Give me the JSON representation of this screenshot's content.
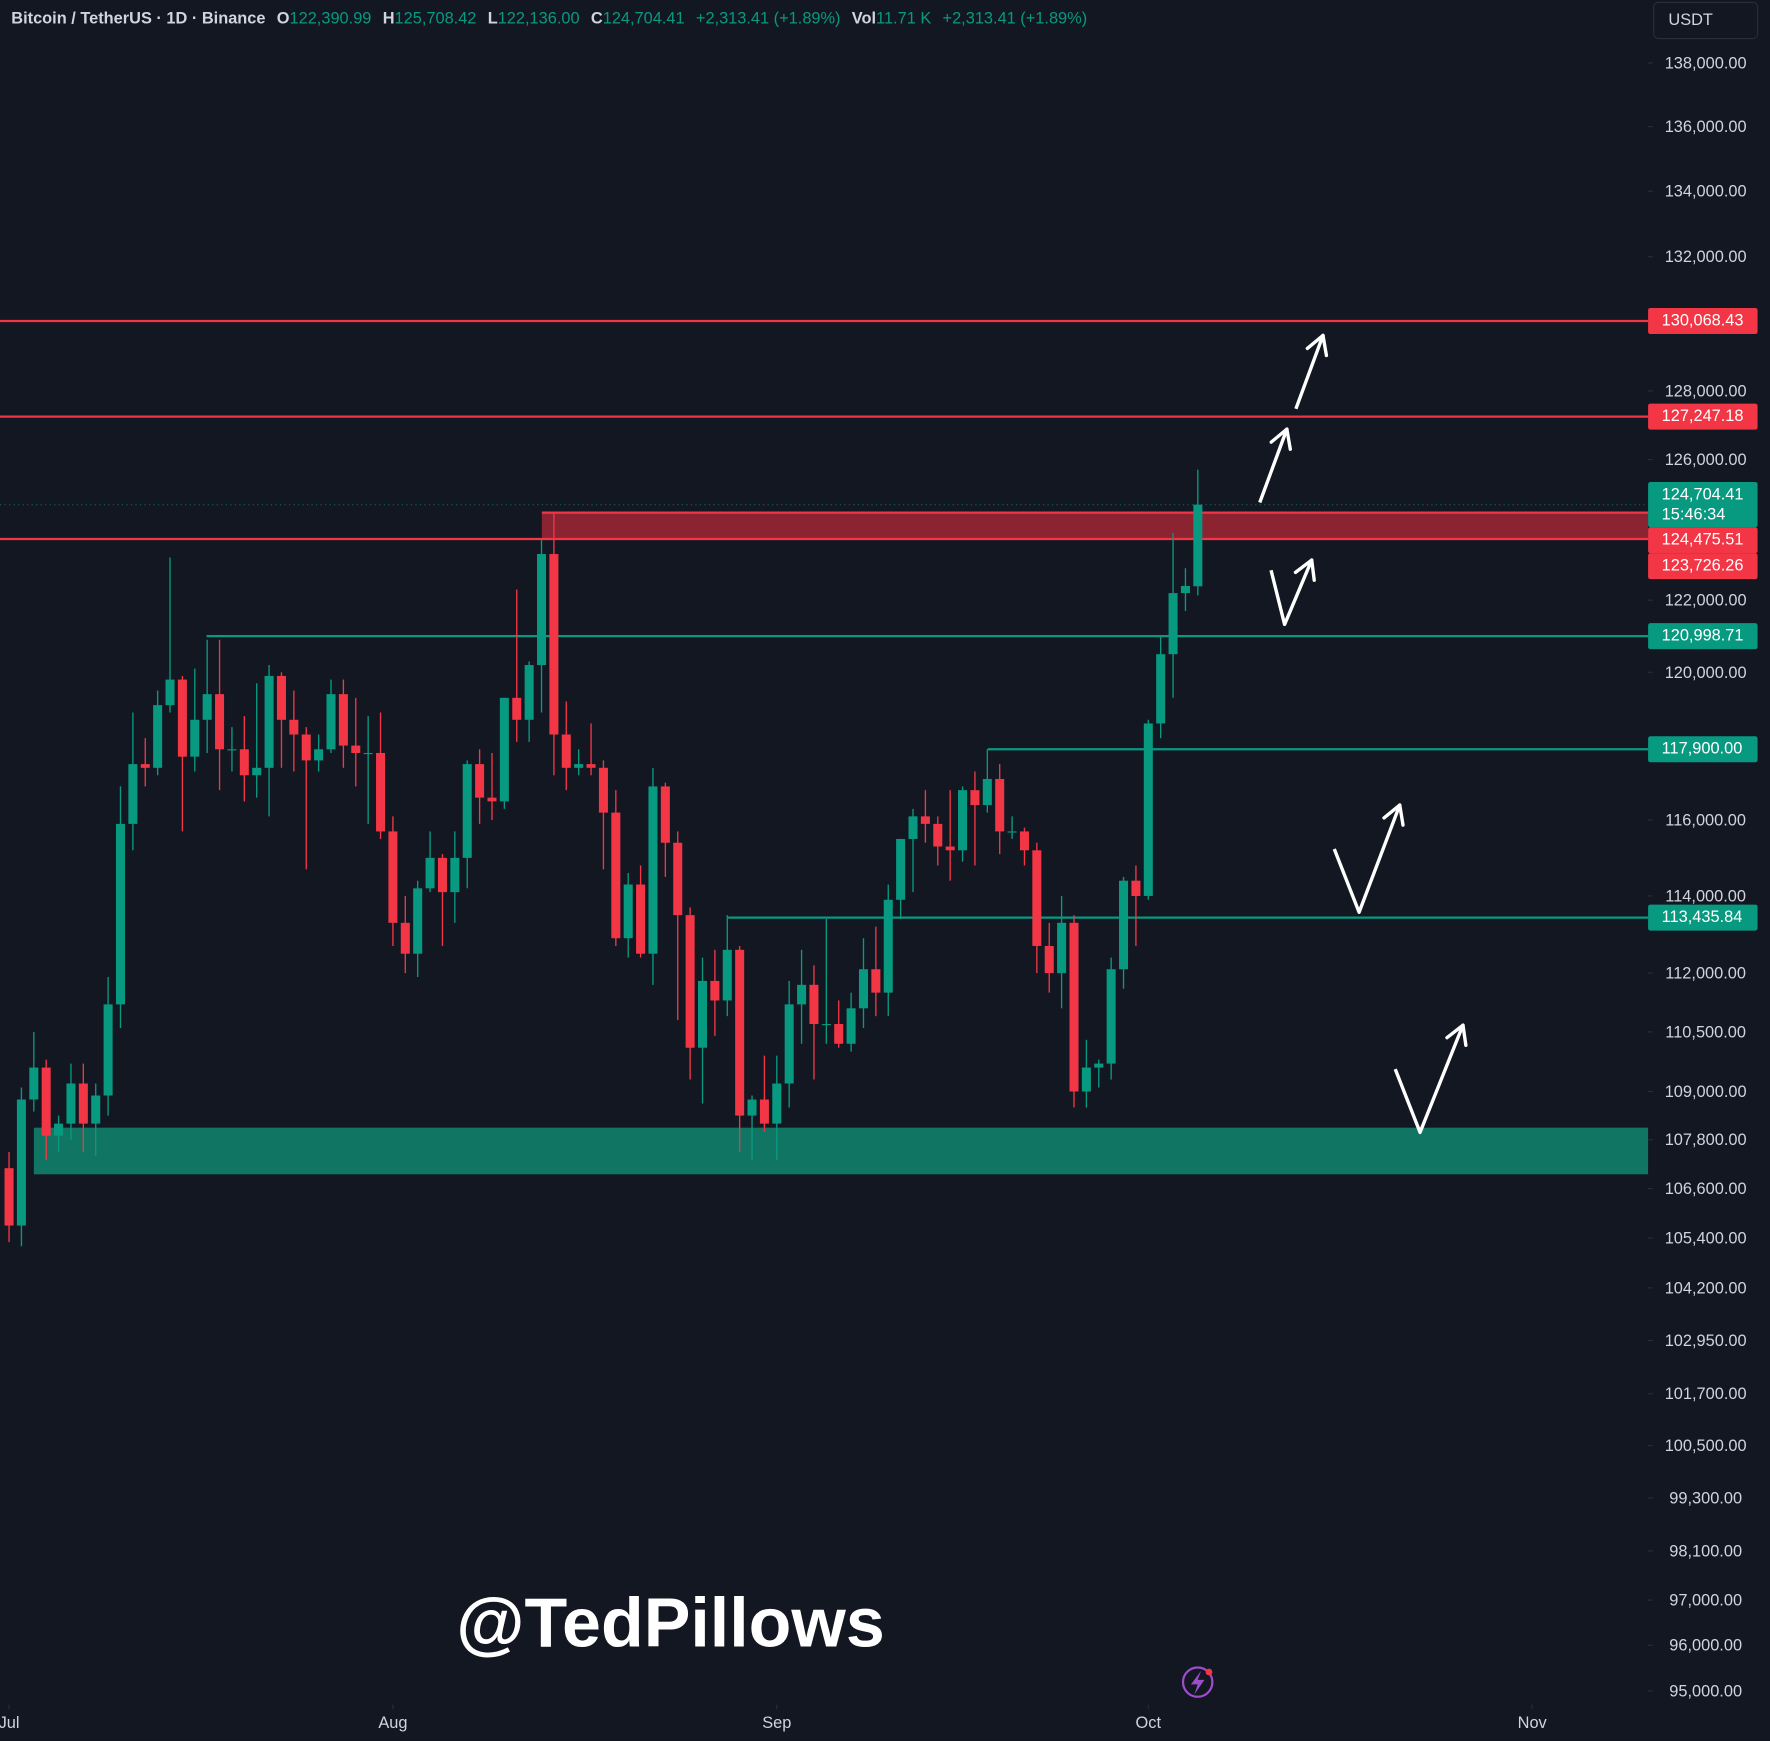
{
  "header": {
    "symbol": "Bitcoin / TetherUS · 1D · Binance",
    "o_label": "O",
    "o": "122,390.99",
    "h_label": "H",
    "h": "125,708.42",
    "l_label": "L",
    "l": "122,136.00",
    "c_label": "C",
    "c": "124,704.41",
    "change": "+2,313.41 (+1.89%)",
    "vol_label": "Vol",
    "vol": "11.71 K",
    "vol_change": "+2,313.41 (+1.89%)"
  },
  "currency": "USDT",
  "watermark": "@TedPillows",
  "chart_data": {
    "type": "candlestick",
    "log_scale": true,
    "up_color": "#089981",
    "down_color": "#f23645",
    "x": [
      0,
      1,
      2,
      3,
      4,
      5,
      6,
      7,
      8,
      9,
      10,
      11,
      12,
      13,
      14,
      15,
      16,
      17,
      18,
      19,
      20,
      21,
      22,
      23,
      24,
      25,
      26,
      27,
      28,
      29,
      30,
      31,
      32,
      33,
      34,
      35,
      36,
      37,
      38,
      39,
      40,
      41,
      42,
      43,
      44,
      45,
      46,
      47,
      48,
      49,
      50,
      51,
      52,
      53,
      54,
      55,
      56,
      57,
      58,
      59,
      60,
      61,
      62,
      63,
      64,
      65,
      66,
      67,
      68,
      69,
      70,
      71,
      72,
      73,
      74,
      75,
      76,
      77,
      78,
      79,
      80,
      81,
      82,
      83,
      84,
      85,
      86,
      87,
      88,
      89,
      90,
      91,
      92,
      93,
      94,
      95,
      96
    ],
    "open": [
      107100,
      105700,
      108800,
      109600,
      107900,
      108200,
      109200,
      108200,
      108900,
      111200,
      115900,
      117500,
      117400,
      119100,
      119800,
      117700,
      118700,
      119400,
      117900,
      117900,
      117200,
      117400,
      119900,
      118700,
      118300,
      117600,
      117900,
      119400,
      118000,
      117800,
      117800,
      115700,
      113300,
      112500,
      114200,
      115000,
      114100,
      115000,
      117500,
      116600,
      116500,
      119300,
      118700,
      120200,
      123300,
      118300,
      117400,
      117500,
      117400,
      116200,
      112900,
      114300,
      112500,
      116900,
      115400,
      113500,
      110100,
      111800,
      111300,
      112600,
      108400,
      108800,
      108200,
      109200,
      111200,
      111700,
      110700,
      110700,
      110200,
      111100,
      112100,
      111500,
      113900,
      115500,
      116100,
      115900,
      115300,
      115200,
      116800,
      116400,
      117100,
      115700,
      115700,
      115200,
      112700,
      112000,
      113300,
      109000,
      109600,
      109700,
      112100,
      114400,
      114000,
      118600,
      120500,
      122200,
      122390.99
    ],
    "high": [
      107500,
      109100,
      110500,
      109800,
      108400,
      109700,
      109700,
      109200,
      111900,
      116900,
      118900,
      118200,
      119500,
      123200,
      119900,
      120100,
      120900,
      120900,
      118500,
      118800,
      119700,
      120200,
      120000,
      119500,
      118500,
      118300,
      119800,
      119800,
      119300,
      118800,
      118900,
      116100,
      114000,
      114400,
      115700,
      115100,
      115700,
      117600,
      117900,
      117800,
      119300,
      122300,
      120300,
      123700,
      124500,
      119200,
      117900,
      118600,
      117600,
      116800,
      114600,
      114800,
      117400,
      117000,
      115700,
      113700,
      112400,
      112600,
      113500,
      112700,
      108900,
      109900,
      109900,
      111800,
      112600,
      112200,
      113400,
      111300,
      111500,
      112900,
      113200,
      114300,
      115500,
      116300,
      116800,
      116100,
      116800,
      116900,
      117300,
      117900,
      117500,
      116100,
      115800,
      115400,
      113300,
      114000,
      113500,
      110300,
      109800,
      112400,
      114500,
      114800,
      118700,
      121000,
      123900,
      122900,
      125708.42
    ],
    "low": [
      105300,
      105200,
      108500,
      107300,
      107500,
      107800,
      107500,
      107400,
      108400,
      110600,
      115200,
      116900,
      117200,
      118900,
      115700,
      117300,
      117800,
      116800,
      117300,
      116500,
      116600,
      116100,
      117400,
      117300,
      114700,
      117300,
      117800,
      117400,
      116900,
      115900,
      115500,
      112700,
      112000,
      111900,
      114100,
      112700,
      113300,
      114200,
      115900,
      116000,
      116300,
      118100,
      118100,
      118900,
      117200,
      116800,
      117200,
      117200,
      114700,
      112700,
      112400,
      112400,
      111700,
      114500,
      110800,
      109300,
      108700,
      110400,
      110900,
      107500,
      107300,
      108000,
      107300,
      108600,
      110200,
      109300,
      110200,
      110100,
      110000,
      110600,
      110900,
      110900,
      113400,
      114100,
      115400,
      114800,
      114400,
      114900,
      114800,
      116200,
      115100,
      115500,
      114800,
      112000,
      111500,
      111100,
      108600,
      108600,
      109100,
      109300,
      111600,
      112700,
      113900,
      118200,
      119300,
      121700,
      122136.0
    ],
    "close": [
      105700,
      108800,
      109600,
      107900,
      108200,
      109200,
      108200,
      108900,
      111200,
      115900,
      117500,
      117400,
      119100,
      119800,
      117700,
      118700,
      119400,
      117900,
      117900,
      117200,
      117400,
      119900,
      118700,
      118300,
      117600,
      117900,
      119400,
      118000,
      117800,
      117800,
      115700,
      113300,
      112500,
      114200,
      115000,
      114100,
      115000,
      117500,
      116600,
      116500,
      119300,
      118700,
      120200,
      123300,
      118300,
      117400,
      117500,
      117400,
      116200,
      112900,
      114300,
      112500,
      116900,
      115400,
      113500,
      110100,
      111800,
      111300,
      112600,
      108400,
      108800,
      108200,
      109200,
      111200,
      111700,
      110700,
      110700,
      110200,
      111100,
      112100,
      111500,
      113900,
      115500,
      116100,
      115900,
      115300,
      115200,
      116800,
      116400,
      117100,
      115700,
      115700,
      115200,
      112700,
      112000,
      113300,
      109000,
      109600,
      109700,
      112100,
      114400,
      114000,
      118600,
      120500,
      122200,
      122400,
      124704.41
    ],
    "xlim": [
      -0.73,
      132.36
    ],
    "xticks": [
      {
        "value": 0,
        "label": "Jul"
      },
      {
        "value": 31,
        "label": "Aug"
      },
      {
        "value": 62,
        "label": "Sep"
      },
      {
        "value": 92,
        "label": "Oct"
      },
      {
        "value": 123,
        "label": "Nov"
      }
    ],
    "ylim": [
      94700,
      140000
    ],
    "yticks": [
      {
        "value": 138000,
        "label": "138,000.00"
      },
      {
        "value": 136000,
        "label": "136,000.00"
      },
      {
        "value": 134000,
        "label": "134,000.00"
      },
      {
        "value": 132000,
        "label": "132,000.00"
      },
      {
        "value": 128000,
        "label": "128,000.00"
      },
      {
        "value": 126000,
        "label": "126,000.00"
      },
      {
        "value": 122000,
        "label": "122,000.00"
      },
      {
        "value": 120000,
        "label": "120,000.00"
      },
      {
        "value": 116000,
        "label": "116,000.00"
      },
      {
        "value": 114000,
        "label": "114,000.00"
      },
      {
        "value": 112000,
        "label": "112,000.00"
      },
      {
        "value": 110500,
        "label": "110,500.00"
      },
      {
        "value": 109000,
        "label": "109,000.00"
      },
      {
        "value": 107800,
        "label": "107,800.00"
      },
      {
        "value": 106600,
        "label": "106,600.00"
      },
      {
        "value": 105400,
        "label": "105,400.00"
      },
      {
        "value": 104200,
        "label": "104,200.00"
      },
      {
        "value": 102950,
        "label": "102,950.00"
      },
      {
        "value": 101700,
        "label": "101,700.00"
      },
      {
        "value": 100500,
        "label": "100,500.00"
      },
      {
        "value": 99300,
        "label": "99,300.00"
      },
      {
        "value": 98100,
        "label": "98,100.00"
      },
      {
        "value": 97000,
        "label": "97,000.00"
      },
      {
        "value": 96000,
        "label": "96,000.00"
      },
      {
        "value": 95000,
        "label": "95,000.00"
      }
    ],
    "levels": [
      {
        "value": 130068.43,
        "label": "130,068.43",
        "color": "#f23645"
      },
      {
        "value": 127247.18,
        "label": "127,247.18",
        "color": "#f23645"
      },
      {
        "value": 124475.51,
        "label": "124,475.51",
        "color": "#f23645"
      },
      {
        "value": 123726.26,
        "label": "123,726.26",
        "color": "#f23645"
      },
      {
        "value": 120998.71,
        "label": "120,998.71",
        "color": "#089981"
      },
      {
        "value": 117900.0,
        "label": "117,900.00",
        "color": "#089981"
      },
      {
        "value": 113435.84,
        "label": "113,435.84",
        "color": "#089981"
      }
    ],
    "zones": [
      {
        "from": 123726.26,
        "to": 124475.51,
        "color": "#8c2330"
      },
      {
        "from": 106950,
        "to": 108100,
        "color": "#117563"
      }
    ],
    "price_label": {
      "value": 124704.41,
      "label": "124,704.41",
      "countdown": "15:46:34",
      "color": "#089981"
    }
  }
}
